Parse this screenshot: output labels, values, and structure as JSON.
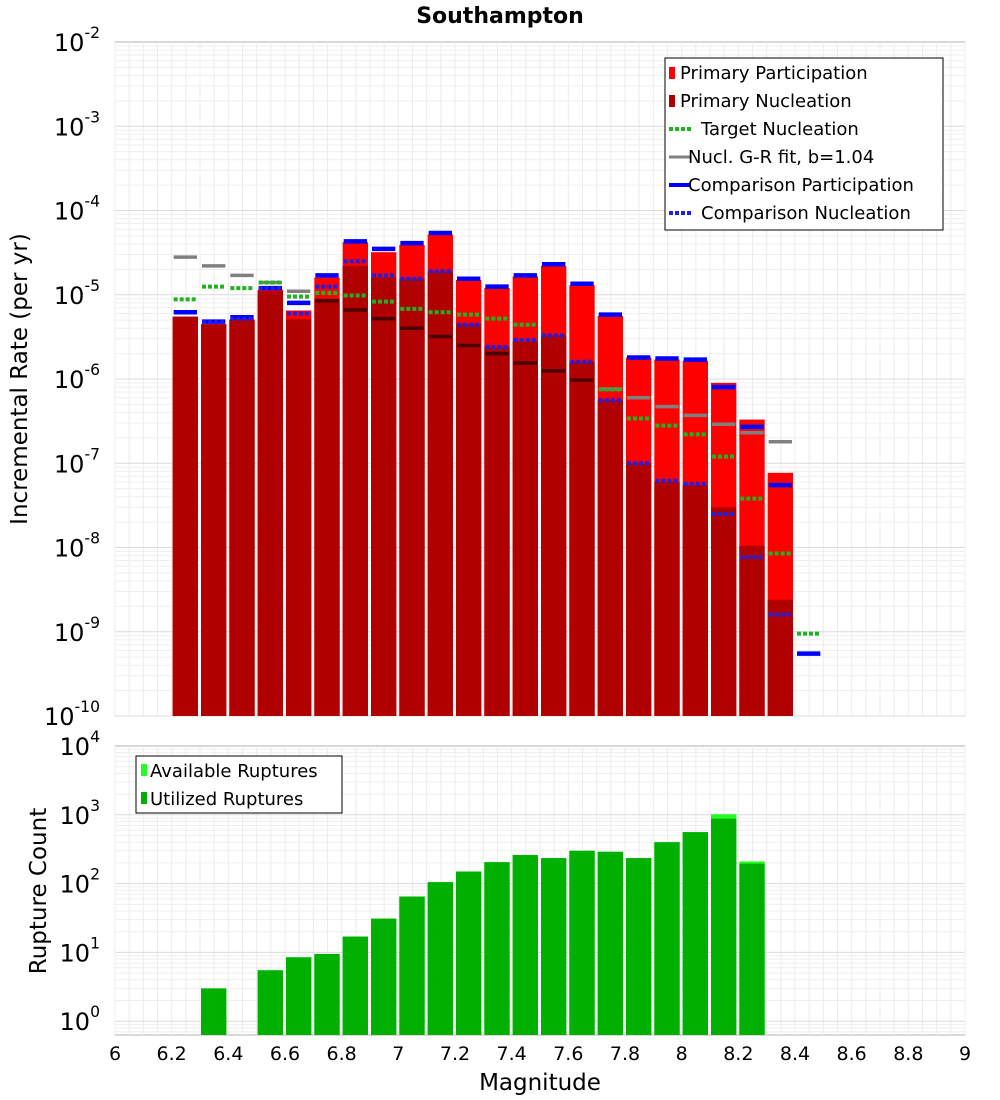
{
  "colors": {
    "primary_participation": "#ff0000",
    "primary_nucleation": "#b00000",
    "target_nucleation": "#1fb31f",
    "gr_fit": "#808080",
    "comparison_participation": "#0000ff",
    "comparison_nucleation": "#1f1fe6",
    "available": "#22ff22",
    "utilized": "#00b000"
  },
  "chart_data": [
    {
      "type": "bar",
      "title": "Southampton",
      "xlabel": "",
      "ylabel": "Incremental Rate (per yr)",
      "y_scale": "log",
      "ylim_exponents": [
        -10,
        -2
      ],
      "y_tick_base": "10",
      "y_tick_exponents": [
        "-10",
        "-9",
        "-8",
        "-7",
        "-6",
        "-5",
        "-4",
        "-3",
        "-2"
      ],
      "xlim": [
        6,
        9
      ],
      "grid": true,
      "legend_position": "top-right",
      "legend": [
        {
          "label": "Primary Participation",
          "style": "bar",
          "color": "#ff0000"
        },
        {
          "label": "Primary Nucleation",
          "style": "bar",
          "color": "#b00000"
        },
        {
          "label": "Target Nucleation",
          "style": "dotted",
          "color": "#1fb31f"
        },
        {
          "label": "Nucl. G-R fit, b=1.04",
          "style": "line-thin",
          "color": "#808080"
        },
        {
          "label": "Comparison Participation",
          "style": "line-thick",
          "color": "#0000ff"
        },
        {
          "label": "Comparison Nucleation",
          "style": "dotted",
          "color": "#1f1fe6"
        }
      ],
      "x": [
        6.25,
        6.35,
        6.45,
        6.55,
        6.65,
        6.75,
        6.85,
        6.95,
        7.05,
        7.15,
        7.25,
        7.35,
        7.45,
        7.55,
        7.65,
        7.75,
        7.85,
        7.95,
        8.05,
        8.15,
        8.25,
        8.35,
        8.45
      ],
      "series": [
        {
          "name": "Primary Participation",
          "values": [
            5.5e-06,
            4.5e-06,
            5.1e-06,
            1.15e-05,
            6.5e-06,
            1.6e-05,
            4.2e-05,
            3.2e-05,
            3.9e-05,
            5.2e-05,
            1.5e-05,
            1.2e-05,
            1.65e-05,
            2.2e-05,
            1.3e-05,
            5.6e-06,
            1.8e-06,
            1.7e-06,
            1.65e-06,
            9e-07,
            3.3e-07,
            7.7e-08,
            null
          ]
        },
        {
          "name": "Primary Nucleation",
          "values": [
            5.5e-06,
            4.4e-06,
            5e-06,
            1.1e-05,
            5.1e-06,
            9e-06,
            2.2e-05,
            1.6e-05,
            1.55e-05,
            1.9e-05,
            4.5e-06,
            2.4e-06,
            2.8e-06,
            3.3e-06,
            1.6e-06,
            5.6e-07,
            1e-07,
            6e-08,
            5.5e-08,
            3e-08,
            1.05e-08,
            2.4e-09,
            null
          ]
        },
        {
          "name": "Target Nucleation",
          "values": [
            8.8e-06,
            1.25e-05,
            1.2e-05,
            1.4e-05,
            9.5e-06,
            1.05e-05,
            9.8e-06,
            8.3e-06,
            6.8e-06,
            6.2e-06,
            5.8e-06,
            5.2e-06,
            4.4e-06,
            null,
            null,
            7.5e-07,
            3.4e-07,
            2.8e-07,
            2.2e-07,
            1.2e-07,
            3.8e-08,
            8.5e-09,
            9.5e-10
          ]
        },
        {
          "name": "Nucl. G-R fit, b=1.04",
          "values": [
            2.8e-05,
            2.2e-05,
            1.7e-05,
            1.4e-05,
            1.1e-05,
            8.5e-06,
            6.6e-06,
            5.2e-06,
            4e-06,
            3.2e-06,
            2.5e-06,
            2e-06,
            1.55e-06,
            1.25e-06,
            9.7e-07,
            7.6e-07,
            6e-07,
            4.7e-07,
            3.7e-07,
            2.9e-07,
            2.3e-07,
            1.8e-07,
            null
          ]
        },
        {
          "name": "Comparison Participation",
          "values": [
            6.2e-06,
            4.8e-06,
            5.4e-06,
            1.2e-05,
            8e-06,
            1.7e-05,
            4.3e-05,
            3.5e-05,
            4.1e-05,
            5.4e-05,
            1.55e-05,
            1.25e-05,
            1.7e-05,
            2.3e-05,
            1.35e-05,
            5.8e-06,
            1.8e-06,
            1.75e-06,
            1.7e-06,
            8e-07,
            2.7e-07,
            5.5e-08,
            5.5e-10
          ]
        },
        {
          "name": "Comparison Nucleation",
          "values": [
            null,
            4.7e-06,
            5.2e-06,
            1.2e-05,
            6e-06,
            1.25e-05,
            2.5e-05,
            1.7e-05,
            1.55e-05,
            1.9e-05,
            4.4e-06,
            2.4e-06,
            2.9e-06,
            3.3e-06,
            1.6e-06,
            5.6e-07,
            1e-07,
            6.2e-08,
            5.7e-08,
            2.5e-08,
            7.7e-09,
            1.6e-09,
            null
          ]
        }
      ]
    },
    {
      "type": "bar",
      "xlabel": "Magnitude",
      "ylabel": "Rupture Count",
      "y_scale": "log",
      "ylim_exponents": [
        -0.2,
        4
      ],
      "y_tick_base": "10",
      "y_tick_exponents": [
        "0",
        "1",
        "2",
        "3",
        "4"
      ],
      "xlim": [
        6,
        9
      ],
      "x_ticks": [
        "6",
        "6.2",
        "6.4",
        "6.6",
        "6.8",
        "7",
        "7.2",
        "7.4",
        "7.6",
        "7.8",
        "8",
        "8.2",
        "8.4",
        "8.6",
        "8.8",
        "9"
      ],
      "grid": true,
      "legend_position": "top-left",
      "legend": [
        {
          "label": "Available Ruptures",
          "style": "bar",
          "color": "#22ff22"
        },
        {
          "label": "Utilized Ruptures",
          "style": "bar",
          "color": "#00b000"
        }
      ],
      "x": [
        6.35,
        6.55,
        6.65,
        6.75,
        6.85,
        6.95,
        7.05,
        7.15,
        7.25,
        7.35,
        7.45,
        7.55,
        7.65,
        7.75,
        7.85,
        7.95,
        8.05,
        8.15,
        8.25
      ],
      "series": [
        {
          "name": "Available Ruptures",
          "values": [
            3,
            5.5,
            8.5,
            9.5,
            17,
            31,
            65,
            105,
            150,
            205,
            260,
            235,
            300,
            290,
            235,
            400,
            560,
            1020,
            210
          ]
        },
        {
          "name": "Utilized Ruptures",
          "values": [
            3,
            5.5,
            8.5,
            9.5,
            17,
            31,
            65,
            105,
            150,
            205,
            260,
            235,
            300,
            290,
            235,
            400,
            560,
            880,
            195
          ]
        }
      ]
    }
  ]
}
